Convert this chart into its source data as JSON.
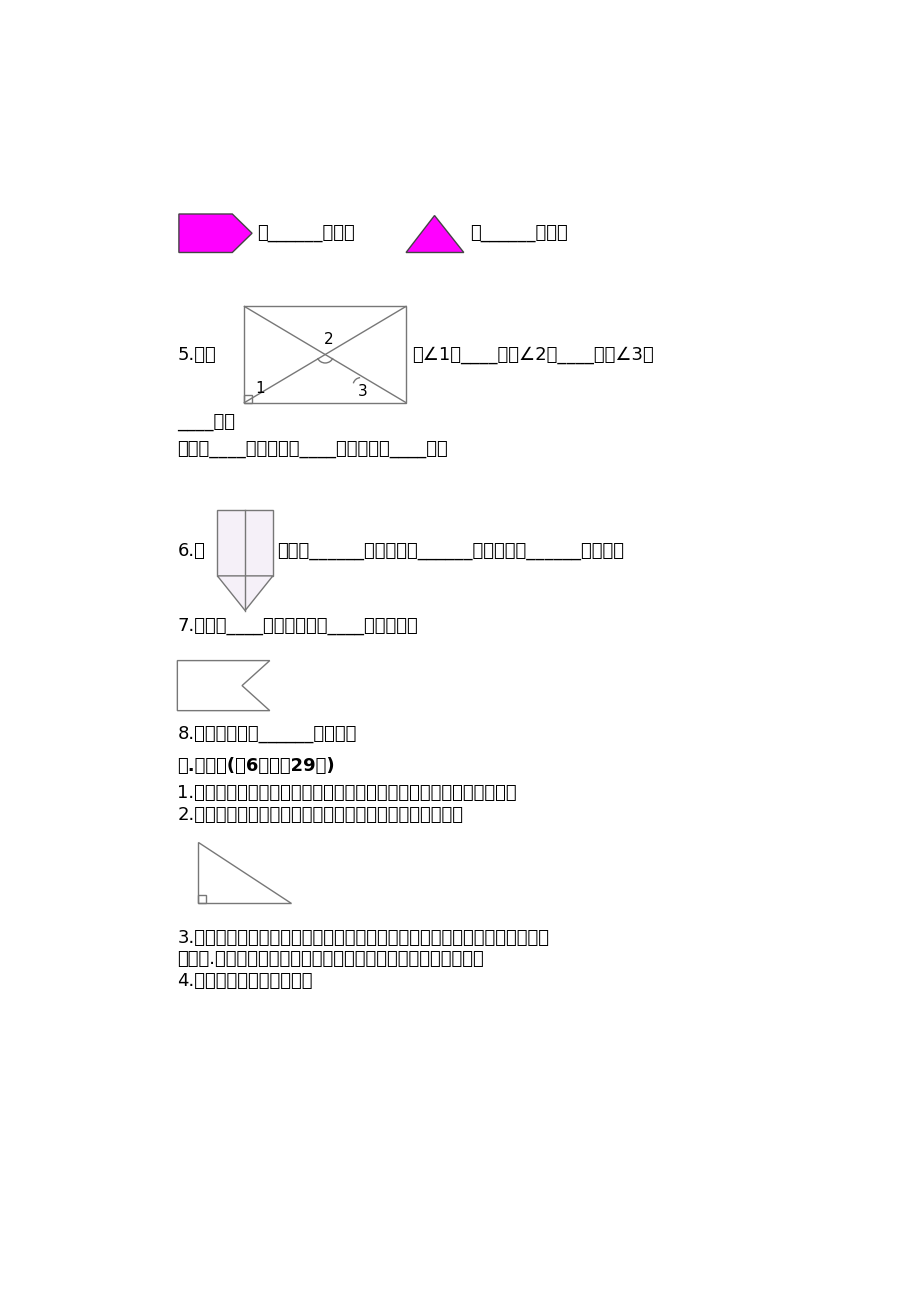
{
  "bg_color": "#ffffff",
  "magenta_color": "#FF00FF",
  "shape_edge_color": "#666666",
  "texts": {
    "line1_text1": "有______个角；",
    "line1_text2": "有______个角。",
    "q5_prefix": "5.图中",
    "q5_suffix": "，∠1是____角，∠2是____角，∠3是",
    "q5_line3": "____角。",
    "q5_count": "锐角有____个，直角有____个，钝角有____个。",
    "q6_prefix": "6.图",
    "q6_suffix": "中，有______个直角，有______个锐角，有______个钝角。",
    "q7": "7.图中有____个角，其中有____个是直角。",
    "q8": "8.黑板的表面有______个直角。",
    "section4_title": "四.解答题(共6题，共29分)",
    "sub1": "1.把一张正方形纸片剪去一个角，剩下的部分有几个角？有几个直角？",
    "sub2": "2.下面的图形是几边形？有几个角？是直角的要画上标记。",
    "sub3_line1": "3.角也是有大小的，为了准确测量出角的大小，就要使用统一的计量单位和度",
    "sub3_line2": "量工具.那么角的度量工具是什么？计量单位又是如何规定的呢？",
    "sub4": "4.数一数图中有几个直角？"
  }
}
